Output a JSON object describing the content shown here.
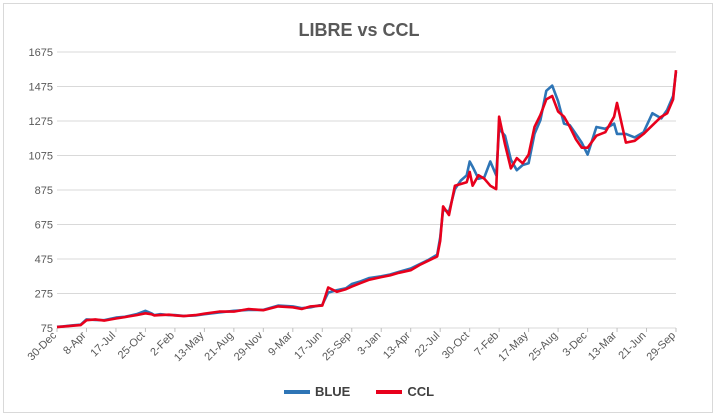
{
  "chart_data": {
    "type": "line",
    "title": "LIBRE vs CCL",
    "xlabel": "",
    "ylabel": "",
    "ylim": [
      75,
      1675
    ],
    "yticks": [
      75,
      275,
      475,
      675,
      875,
      1075,
      1275,
      1475,
      1675
    ],
    "xticks": [
      "30-Dec",
      "8-Apr",
      "17-Jul",
      "25-Oct",
      "2-Feb",
      "13-May",
      "21-Aug",
      "29-Nov",
      "9-Mar",
      "17-Jun",
      "25-Sep",
      "3-Jan",
      "13-Apr",
      "22-Jul",
      "30-Oct",
      "7-Feb",
      "17-May",
      "25-Aug",
      "3-Dec",
      "13-Mar",
      "21-Jun",
      "29-Sep"
    ],
    "legend_position": "bottom",
    "series": [
      {
        "name": "BLUE",
        "color": "#2e75b6",
        "x": [
          0,
          0.2,
          0.5,
          0.8,
          1,
          1.3,
          1.6,
          2,
          2.3,
          2.7,
          3,
          3.2,
          3.3,
          3.5,
          3.8,
          4,
          4.3,
          4.7,
          5,
          5.5,
          6,
          6.5,
          7,
          7.5,
          8,
          8.3,
          8.6,
          9,
          9.2,
          9.5,
          9.8,
          10,
          10.3,
          10.6,
          11,
          11.3,
          11.6,
          12,
          12.3,
          12.6,
          12.9,
          13,
          13.1,
          13.3,
          13.5,
          13.7,
          13.9,
          14,
          14.1,
          14.3,
          14.5,
          14.7,
          14.9,
          15,
          15.2,
          15.4,
          15.6,
          15.8,
          16,
          16.2,
          16.4,
          16.6,
          16.8,
          17,
          17.2,
          17.4,
          17.6,
          17.8,
          18,
          18.3,
          18.6,
          18.9,
          19,
          19.3,
          19.6,
          19.9,
          20.2,
          20.5,
          20.7,
          20.9,
          21
        ],
        "values": [
          82,
          84,
          90,
          94,
          125,
          122,
          120,
          135,
          140,
          155,
          175,
          160,
          150,
          155,
          150,
          150,
          145,
          148,
          155,
          165,
          175,
          180,
          180,
          205,
          200,
          190,
          195,
          210,
          280,
          295,
          305,
          330,
          345,
          365,
          375,
          385,
          400,
          420,
          445,
          470,
          500,
          600,
          760,
          750,
          880,
          930,
          960,
          1040,
          1010,
          940,
          950,
          1040,
          960,
          1230,
          1190,
          1050,
          990,
          1020,
          1030,
          1200,
          1280,
          1450,
          1480,
          1390,
          1260,
          1250,
          1200,
          1150,
          1080,
          1240,
          1230,
          1260,
          1200,
          1200,
          1180,
          1210,
          1320,
          1290,
          1340,
          1420,
          1560
        ]
      },
      {
        "name": "CCL",
        "color": "#e8001c",
        "x": [
          0,
          0.2,
          0.5,
          0.8,
          1,
          1.3,
          1.6,
          2,
          2.3,
          2.7,
          3,
          3.2,
          3.3,
          3.5,
          3.8,
          4,
          4.3,
          4.7,
          5,
          5.5,
          6,
          6.5,
          7,
          7.5,
          8,
          8.3,
          8.6,
          9,
          9.2,
          9.5,
          9.8,
          10,
          10.3,
          10.6,
          11,
          11.3,
          11.6,
          12,
          12.3,
          12.6,
          12.9,
          13,
          13.1,
          13.3,
          13.5,
          13.7,
          13.9,
          14,
          14.1,
          14.3,
          14.5,
          14.7,
          14.9,
          15,
          15.2,
          15.4,
          15.6,
          15.8,
          16,
          16.2,
          16.4,
          16.6,
          16.8,
          17,
          17.2,
          17.4,
          17.6,
          17.8,
          18,
          18.3,
          18.6,
          18.9,
          19,
          19.3,
          19.6,
          19.9,
          20.2,
          20.5,
          20.7,
          20.9,
          21
        ],
        "values": [
          80,
          83,
          88,
          92,
          120,
          125,
          118,
          130,
          138,
          150,
          160,
          155,
          148,
          150,
          152,
          148,
          144,
          150,
          158,
          170,
          170,
          185,
          178,
          200,
          195,
          185,
          200,
          205,
          310,
          285,
          300,
          315,
          335,
          355,
          370,
          380,
          395,
          410,
          440,
          465,
          490,
          580,
          780,
          730,
          900,
          910,
          920,
          980,
          900,
          960,
          940,
          900,
          880,
          1300,
          1140,
          1000,
          1060,
          1030,
          1080,
          1240,
          1310,
          1400,
          1420,
          1330,
          1300,
          1240,
          1170,
          1120,
          1120,
          1190,
          1210,
          1300,
          1380,
          1150,
          1160,
          1200,
          1250,
          1300,
          1320,
          1400,
          1570
        ]
      }
    ]
  }
}
